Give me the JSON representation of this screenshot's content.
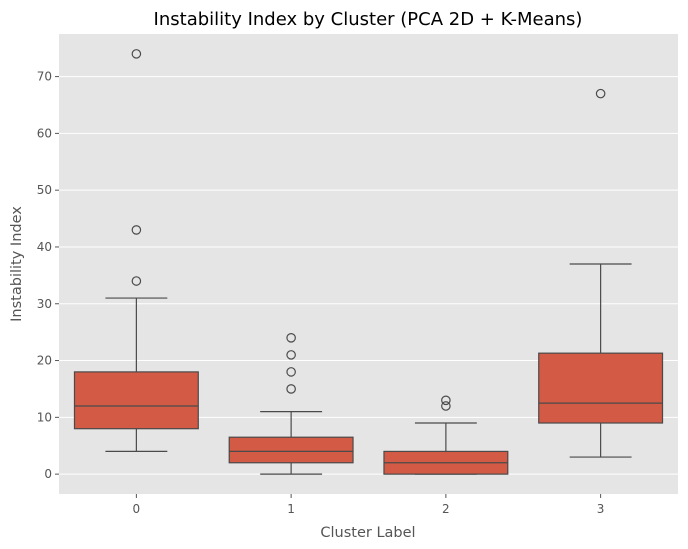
{
  "chart_data": {
    "type": "box",
    "title": "Instability Index by Cluster (PCA 2D + K-Means)",
    "xlabel": "Cluster Label",
    "ylabel": "Instability Index",
    "categories": [
      "0",
      "1",
      "2",
      "3"
    ],
    "ylim": [
      -3.5,
      77.5
    ],
    "yticks": [
      0,
      10,
      20,
      30,
      40,
      50,
      60,
      70
    ],
    "grid": true,
    "colors": {
      "plot_background": "#e5e5e5",
      "grid": "#ffffff",
      "box_fill": "#d35a44",
      "line": "#4a4a4a"
    },
    "series": [
      {
        "boxes": [
          {
            "category": "0",
            "whisker_low": 4,
            "q1": 8,
            "median": 12,
            "q3": 18,
            "whisker_high": 31,
            "outliers": [
              34,
              43,
              74
            ]
          },
          {
            "category": "1",
            "whisker_low": 0,
            "q1": 2,
            "median": 4,
            "q3": 6.5,
            "whisker_high": 11,
            "outliers": [
              15,
              18,
              21,
              24
            ]
          },
          {
            "category": "2",
            "whisker_low": 0,
            "q1": 0,
            "median": 2,
            "q3": 4,
            "whisker_high": 9,
            "outliers": [
              12,
              13
            ]
          },
          {
            "category": "3",
            "whisker_low": 3,
            "q1": 9,
            "median": 12.5,
            "q3": 21.3,
            "whisker_high": 37,
            "outliers": [
              67
            ]
          }
        ]
      }
    ]
  }
}
